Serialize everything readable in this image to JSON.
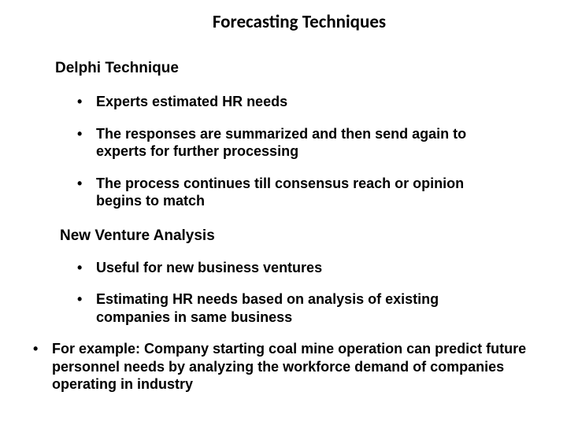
{
  "slide": {
    "title": "Forecasting Techniques",
    "sections": [
      {
        "heading": "Delphi Technique",
        "bullets": [
          "Experts estimated HR needs",
          "The responses are summarized and then send again to experts for further processing",
          "The process continues till consensus reach or opinion begins to match"
        ]
      },
      {
        "heading": "New Venture Analysis",
        "bullets": [
          "Useful for new business ventures",
          "Estimating HR needs based on analysis of existing companies in same business"
        ]
      }
    ],
    "outer_bullets": [
      "For example: Company starting coal mine operation can predict future personnel needs by analyzing the workforce demand of companies operating in industry"
    ]
  },
  "styling": {
    "background_color": "#ffffff",
    "text_color": "#000000",
    "title_fontsize": 23,
    "heading_fontsize": 19,
    "body_fontsize": 18,
    "font_family_title": "Calibri",
    "font_family_body": "Arial",
    "font_weight": "bold"
  }
}
